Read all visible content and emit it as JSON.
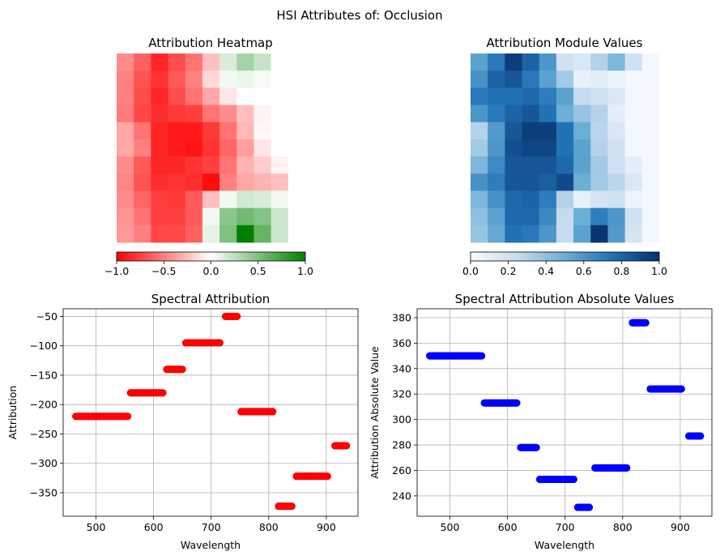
{
  "figure_title": "HSI Attributes of: Occlusion",
  "colors": {
    "positive": "#008000",
    "negative": "#ff0000",
    "module_light": "#f7fbff",
    "module_dark": "#08306b",
    "spectral_attribution": "#ff0000",
    "spectral_absolute": "#0000ff",
    "grid": "#b0b0b0"
  },
  "chart_data": [
    {
      "type": "heatmap",
      "title": "Attribution Heatmap",
      "colormap": "red-white-green",
      "colorbar_range": [
        -1.0,
        1.0
      ],
      "colorbar_ticks": [
        -1.0,
        -0.5,
        0.0,
        0.5,
        1.0
      ],
      "colorbar_tick_labels": [
        "−1.0",
        "−0.5",
        "0.0",
        "0.5",
        "1.0"
      ],
      "values": [
        [
          -0.45,
          -0.62,
          -0.85,
          -0.7,
          -0.55,
          -0.25,
          0.15,
          0.35,
          0.22,
          0.0,
          0.0
        ],
        [
          -0.5,
          -0.68,
          -0.8,
          -0.65,
          -0.5,
          -0.15,
          0.05,
          0.08,
          0.03,
          0.0,
          0.0
        ],
        [
          -0.5,
          -0.7,
          -0.85,
          -0.7,
          -0.55,
          -0.35,
          -0.1,
          0.0,
          0.0,
          0.0,
          0.0
        ],
        [
          -0.52,
          -0.72,
          -0.82,
          -0.78,
          -0.75,
          -0.55,
          -0.45,
          -0.25,
          -0.05,
          0.0,
          0.0
        ],
        [
          -0.35,
          -0.55,
          -0.85,
          -0.9,
          -0.9,
          -0.78,
          -0.55,
          -0.28,
          -0.03,
          0.0,
          0.0
        ],
        [
          -0.35,
          -0.5,
          -0.85,
          -0.9,
          -0.92,
          -0.8,
          -0.6,
          -0.38,
          -0.1,
          0.0,
          0.0
        ],
        [
          -0.45,
          -0.65,
          -0.85,
          -0.85,
          -0.8,
          -0.75,
          -0.55,
          -0.3,
          -0.2,
          -0.05,
          0.0
        ],
        [
          -0.48,
          -0.68,
          -0.82,
          -0.8,
          -0.82,
          -0.95,
          -0.5,
          -0.35,
          -0.3,
          -0.25,
          0.0
        ],
        [
          -0.45,
          -0.6,
          -0.75,
          -0.78,
          -0.65,
          -0.25,
          0.05,
          0.18,
          0.15,
          0.05,
          0.0
        ],
        [
          -0.42,
          -0.55,
          -0.75,
          -0.75,
          -0.65,
          0.05,
          0.45,
          0.55,
          0.48,
          0.2,
          0.0
        ],
        [
          -0.4,
          -0.5,
          -0.72,
          -0.72,
          -0.62,
          0.1,
          0.5,
          1.0,
          0.6,
          0.2,
          0.0
        ]
      ]
    },
    {
      "type": "heatmap",
      "title": "Attribution Module Values",
      "colormap": "blues",
      "colorbar_range": [
        0.0,
        1.0
      ],
      "colorbar_ticks": [
        0.0,
        0.2,
        0.4,
        0.6,
        0.8,
        1.0
      ],
      "colorbar_tick_labels": [
        "0.0",
        "0.2",
        "0.4",
        "0.6",
        "0.8",
        "1.0"
      ],
      "values": [
        [
          0.55,
          0.72,
          0.95,
          0.8,
          0.6,
          0.2,
          0.15,
          0.3,
          0.45,
          0.2,
          0.02
        ],
        [
          0.62,
          0.8,
          0.85,
          0.72,
          0.55,
          0.35,
          0.08,
          0.1,
          0.06,
          0.02,
          0.02
        ],
        [
          0.72,
          0.75,
          0.75,
          0.78,
          0.7,
          0.55,
          0.25,
          0.2,
          0.15,
          0.02,
          0.02
        ],
        [
          0.6,
          0.72,
          0.8,
          0.85,
          0.75,
          0.5,
          0.38,
          0.3,
          0.1,
          0.02,
          0.02
        ],
        [
          0.3,
          0.58,
          0.85,
          0.95,
          0.95,
          0.75,
          0.5,
          0.28,
          0.15,
          0.02,
          0.02
        ],
        [
          0.35,
          0.6,
          0.88,
          0.92,
          0.92,
          0.75,
          0.55,
          0.3,
          0.2,
          0.02,
          0.02
        ],
        [
          0.45,
          0.65,
          0.85,
          0.85,
          0.85,
          0.78,
          0.55,
          0.35,
          0.2,
          0.1,
          0.02
        ],
        [
          0.62,
          0.7,
          0.85,
          0.85,
          0.82,
          0.9,
          0.5,
          0.35,
          0.28,
          0.15,
          0.02
        ],
        [
          0.45,
          0.62,
          0.78,
          0.8,
          0.7,
          0.3,
          0.08,
          0.18,
          0.2,
          0.05,
          0.02
        ],
        [
          0.4,
          0.55,
          0.78,
          0.78,
          0.65,
          0.25,
          0.5,
          0.7,
          0.6,
          0.2,
          0.02
        ],
        [
          0.38,
          0.52,
          0.75,
          0.72,
          0.6,
          0.25,
          0.55,
          0.98,
          0.58,
          0.18,
          0.02
        ]
      ]
    },
    {
      "type": "scatter",
      "title": "Spectral Attribution",
      "xlabel": "Wavelength",
      "ylabel": "Attribution",
      "xlim": [
        443,
        955
      ],
      "ylim": [
        -390,
        -37
      ],
      "xticks": [
        500,
        600,
        700,
        800,
        900
      ],
      "yticks": [
        -50,
        -100,
        -150,
        -200,
        -250,
        -300,
        -350
      ],
      "ytick_labels": [
        "−50",
        "−100",
        "−150",
        "−200",
        "−250",
        "−300",
        "−350"
      ],
      "grid": true,
      "segments": [
        {
          "x_start": 465,
          "x_end": 555,
          "y": -220
        },
        {
          "x_start": 560,
          "x_end": 616,
          "y": -180
        },
        {
          "x_start": 623,
          "x_end": 650,
          "y": -140
        },
        {
          "x_start": 656,
          "x_end": 715,
          "y": -95
        },
        {
          "x_start": 725,
          "x_end": 745,
          "y": -50
        },
        {
          "x_start": 752,
          "x_end": 807,
          "y": -212
        },
        {
          "x_start": 817,
          "x_end": 840,
          "y": -373
        },
        {
          "x_start": 848,
          "x_end": 902,
          "y": -322
        },
        {
          "x_start": 915,
          "x_end": 935,
          "y": -270
        }
      ]
    },
    {
      "type": "scatter",
      "title": "Spectral Attribution Absolute Values",
      "xlabel": "Wavelength",
      "ylabel": "Attribution Absolute Value",
      "xlim": [
        443,
        955
      ],
      "ylim": [
        224,
        387
      ],
      "xticks": [
        500,
        600,
        700,
        800,
        900
      ],
      "yticks": [
        240,
        260,
        280,
        300,
        320,
        340,
        360,
        380
      ],
      "grid": true,
      "segments": [
        {
          "x_start": 465,
          "x_end": 555,
          "y": 350
        },
        {
          "x_start": 560,
          "x_end": 616,
          "y": 313
        },
        {
          "x_start": 623,
          "x_end": 650,
          "y": 278
        },
        {
          "x_start": 656,
          "x_end": 715,
          "y": 253
        },
        {
          "x_start": 722,
          "x_end": 742,
          "y": 231
        },
        {
          "x_start": 752,
          "x_end": 807,
          "y": 262
        },
        {
          "x_start": 817,
          "x_end": 840,
          "y": 376
        },
        {
          "x_start": 848,
          "x_end": 902,
          "y": 324
        },
        {
          "x_start": 915,
          "x_end": 935,
          "y": 287
        }
      ]
    }
  ]
}
